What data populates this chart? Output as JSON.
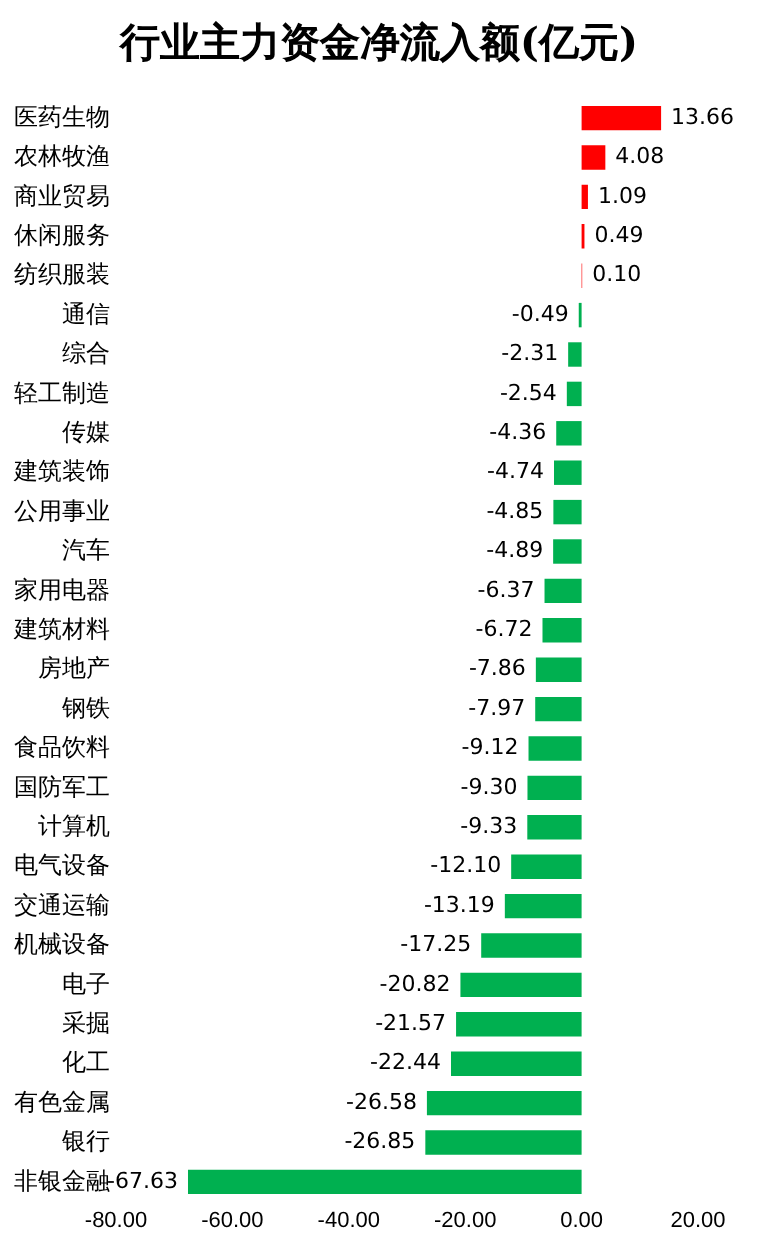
{
  "chart_data": {
    "type": "bar",
    "orientation": "horizontal",
    "title": "行业主力资金净流入额(亿元)",
    "categories": [
      "医药生物",
      "农林牧渔",
      "商业贸易",
      "休闲服务",
      "纺织服装",
      "通信",
      "综合",
      "轻工制造",
      "传媒",
      "建筑装饰",
      "公用事业",
      "汽车",
      "家用电器",
      "建筑材料",
      "房地产",
      "钢铁",
      "食品饮料",
      "国防军工",
      "计算机",
      "电气设备",
      "交通运输",
      "机械设备",
      "电子",
      "采掘",
      "化工",
      "有色金属",
      "银行",
      "非银金融"
    ],
    "values": [
      13.66,
      4.08,
      1.09,
      0.49,
      0.1,
      -0.49,
      -2.31,
      -2.54,
      -4.36,
      -4.74,
      -4.85,
      -4.89,
      -6.37,
      -6.72,
      -7.86,
      -7.97,
      -9.12,
      -9.3,
      -9.33,
      -12.1,
      -13.19,
      -17.25,
      -20.82,
      -21.57,
      -22.44,
      -26.58,
      -26.85,
      -67.63
    ],
    "value_labels": [
      "13.66",
      "4.08",
      "1.09",
      "0.49",
      "0.10",
      "-0.49",
      "-2.31",
      "-2.54",
      "-4.36",
      "-4.74",
      "-4.85",
      "-4.89",
      "-6.37",
      "-6.72",
      "-7.86",
      "-7.97",
      "-9.12",
      "-9.30",
      "-9.33",
      "-12.10",
      "-13.19",
      "-17.25",
      "-20.82",
      "-21.57",
      "-22.44",
      "-26.58",
      "-26.85",
      "-67.63"
    ],
    "colors": [
      "#ff0000",
      "#ff0000",
      "#ff0000",
      "#ff0000",
      "#ff0000",
      "#00b050",
      "#00b050",
      "#00b050",
      "#00b050",
      "#00b050",
      "#00b050",
      "#00b050",
      "#00b050",
      "#00b050",
      "#00b050",
      "#00b050",
      "#00b050",
      "#00b050",
      "#00b050",
      "#00b050",
      "#00b050",
      "#00b050",
      "#00b050",
      "#00b050",
      "#00b050",
      "#00b050",
      "#00b050",
      "#00b050"
    ],
    "xlim": [
      -80,
      20
    ],
    "xticks": [
      {
        "value": -80,
        "label": "-80.00"
      },
      {
        "value": -60,
        "label": "-60.00"
      },
      {
        "value": -40,
        "label": "-40.00"
      },
      {
        "value": -20,
        "label": "-20.00"
      },
      {
        "value": 0,
        "label": "0.00"
      },
      {
        "value": 20,
        "label": "20.00"
      }
    ],
    "grid": false,
    "legend": false
  }
}
